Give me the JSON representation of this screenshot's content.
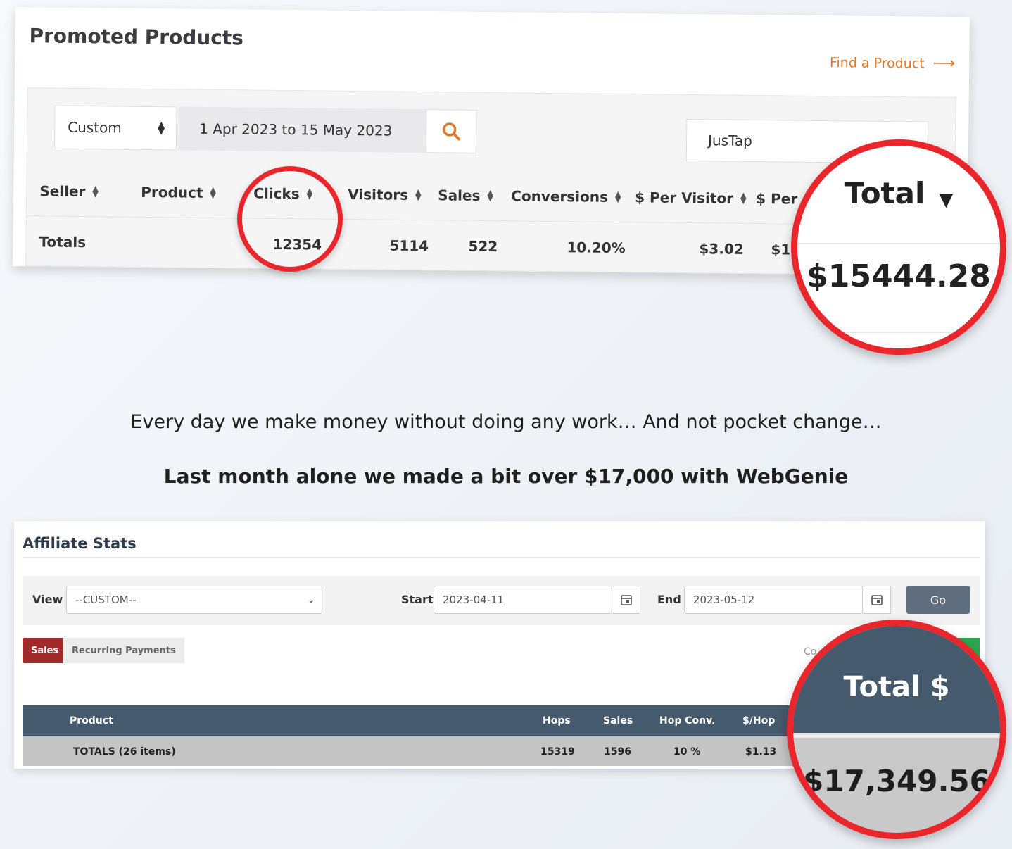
{
  "promoted": {
    "title": "Promoted Products",
    "find_link": "Find a Product",
    "range_select": "Custom",
    "date_range": "1 Apr 2023 to 15 May 2023",
    "filter_value": "JusTap",
    "columns": [
      "Seller",
      "Product",
      "Clicks",
      "Visitors",
      "Sales",
      "Conversions",
      "$ Per Visitor",
      "$ Per"
    ],
    "totals_label": "Totals",
    "totals": {
      "clicks": "12354",
      "visitors": "5114",
      "sales": "522",
      "conversions": "10.20%",
      "per_visitor": "$3.02",
      "per_partial": "$1"
    },
    "zoom_header": "Total",
    "zoom_value": "$15444.28"
  },
  "copy": {
    "line1": "Every day we make money without doing any work… And not pocket change…",
    "line2": "Last month alone we made a bit over $17,000 with WebGenie"
  },
  "affiliate": {
    "title": "Affiliate Stats",
    "view_label": "View",
    "view_value": "--CUSTOM--",
    "start_label": "Start",
    "start_value": "2023-04-11",
    "end_label": "End",
    "end_value": "2023-05-12",
    "go_label": "Go",
    "tab_sales": "Sales",
    "tab_recurring": "Recurring Payments",
    "partial_text": "Co",
    "columns": [
      "Product",
      "Hops",
      "Sales",
      "Hop Conv.",
      "$/Hop"
    ],
    "totals_row": {
      "product": "TOTALS (26 items)",
      "hops": "15319",
      "sales": "1596",
      "hop_conv": "10 %",
      "per_hop": "$1.13"
    },
    "zoom_header": "Total $",
    "zoom_value": "$17,349.56"
  },
  "colors": {
    "accent_orange": "#e07a2a",
    "highlight_red": "#e8262b",
    "table_header": "#465a6d",
    "tab_active": "#a12b2b"
  }
}
